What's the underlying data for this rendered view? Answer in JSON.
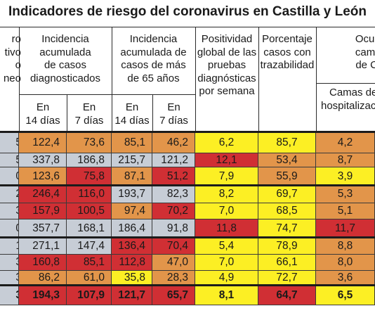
{
  "title": "Indicadores de riesgo del coronavirus en Castilla y León",
  "header": {
    "col0": [
      "ro",
      "tivo",
      "o",
      "neo"
    ],
    "g1": [
      "Incidencia",
      "acumulada",
      "de casos",
      "diagnosticados"
    ],
    "g2": [
      "Incidencia",
      "acumulada de",
      "casos de más",
      "de 65 años"
    ],
    "g3": [
      "Positividad",
      "global de las",
      "pruebas",
      "diagnósticas",
      "por semana"
    ],
    "g4": [
      "Porcentaje",
      "casos con",
      "trazabilidad"
    ],
    "g5": [
      "Ocupa",
      "camas",
      "de CO"
    ],
    "g5_sub": [
      "Camas de",
      "hospitalizació"
    ],
    "sub_14": [
      "En",
      "14 días"
    ],
    "sub_7": [
      "En",
      "7 días"
    ]
  },
  "colors": {
    "orange": "#e2954a",
    "red": "#d02f34",
    "grey": "#c7cdd6",
    "yellow": "#fcef24",
    "grid": "#3a3a3a",
    "separator": "#1c1c1c"
  },
  "chart_data": {
    "type": "table",
    "title": "Indicadores de riesgo del coronavirus en Castilla y León",
    "columns": [
      "Incidencia acumulada de casos diagnosticados - En 14 días",
      "Incidencia acumulada de casos diagnosticados - En 7 días",
      "Incidencia acumulada de casos de más de 65 años - En 14 días",
      "Incidencia acumulada de casos de más de 65 años - En 7 días",
      "Positividad global de las pruebas diagnósticas por semana",
      "Porcentaje casos con trazabilidad",
      "Camas de hospitalizació"
    ],
    "rows": [
      {
        "stub": "5",
        "values": [
          "122,4",
          "73,6",
          "85,1",
          "46,2",
          "6,2",
          "85,7",
          "4,2"
        ],
        "levels": [
          "orange",
          "orange",
          "orange",
          "orange",
          "yellow",
          "yellow",
          "orange"
        ]
      },
      {
        "stub": "5",
        "values": [
          "337,8",
          "186,8",
          "215,7",
          "121,2",
          "12,1",
          "53,4",
          "8,7"
        ],
        "levels": [
          "grey",
          "grey",
          "grey",
          "grey",
          "red",
          "orange",
          "orange"
        ]
      },
      {
        "stub": "0",
        "values": [
          "123,6",
          "75,8",
          "87,1",
          "51,2",
          "7,9",
          "55,9",
          "3,9"
        ],
        "levels": [
          "orange",
          "red",
          "orange",
          "red",
          "yellow",
          "orange",
          "yellow"
        ]
      },
      {
        "stub": "2",
        "values": [
          "246,4",
          "116,0",
          "193,7",
          "82,3",
          "8,2",
          "69,7",
          "5,3"
        ],
        "levels": [
          "red",
          "red",
          "grey",
          "grey",
          "yellow",
          "yellow",
          "orange"
        ]
      },
      {
        "stub": "3",
        "values": [
          "157,9",
          "100,5",
          "97,4",
          "70,2",
          "7,0",
          "68,5",
          "5,1"
        ],
        "levels": [
          "red",
          "red",
          "orange",
          "red",
          "yellow",
          "yellow",
          "orange"
        ]
      },
      {
        "stub": "0",
        "values": [
          "357,7",
          "168,1",
          "186,4",
          "91,8",
          "11,8",
          "74,7",
          "11,7"
        ],
        "levels": [
          "grey",
          "grey",
          "grey",
          "grey",
          "red",
          "yellow",
          "red"
        ]
      },
      {
        "stub": "1",
        "values": [
          "271,1",
          "147,4",
          "136,4",
          "70,4",
          "5,4",
          "78,9",
          "8,8"
        ],
        "levels": [
          "grey",
          "grey",
          "red",
          "red",
          "yellow",
          "yellow",
          "orange"
        ]
      },
      {
        "stub": "3",
        "values": [
          "160,8",
          "85,1",
          "112,8",
          "47,0",
          "7,0",
          "66,1",
          "8,0"
        ],
        "levels": [
          "red",
          "red",
          "red",
          "orange",
          "yellow",
          "yellow",
          "orange"
        ]
      },
      {
        "stub": "3",
        "values": [
          "86,2",
          "61,0",
          "35,8",
          "28,3",
          "4,9",
          "72,7",
          "3,6"
        ],
        "levels": [
          "orange",
          "orange",
          "yellow",
          "orange",
          "yellow",
          "yellow",
          "orange"
        ]
      },
      {
        "stub": "3",
        "total": true,
        "values": [
          "194,3",
          "107,9",
          "121,7",
          "65,7",
          "8,1",
          "64,7",
          "6,5"
        ],
        "levels": [
          "red",
          "red",
          "red",
          "red",
          "yellow",
          "red",
          "yellow"
        ]
      }
    ]
  }
}
